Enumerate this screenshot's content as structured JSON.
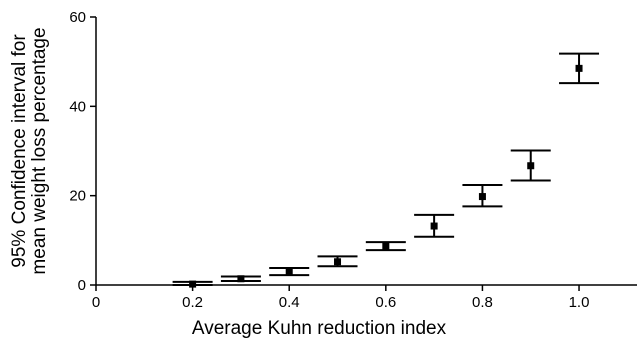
{
  "chart_data": {
    "type": "scatter",
    "title": "",
    "xlabel": "Average Kuhn reduction index",
    "ylabel_lines": [
      "95% Confidence interval for",
      "mean weight loss percentage"
    ],
    "xlim": [
      0,
      1.12
    ],
    "ylim": [
      0,
      60
    ],
    "xticks": [
      0,
      0.2,
      0.4,
      0.6,
      0.8,
      1.0
    ],
    "xtick_labels": [
      "0",
      "0.2",
      "0.4",
      "0.6",
      "0.8",
      "1.0"
    ],
    "yticks": [
      0,
      20,
      40,
      60
    ],
    "ytick_labels": [
      "0",
      "20",
      "40",
      "60"
    ],
    "grid": false,
    "series": [
      {
        "marker": "square",
        "points": [
          {
            "x": 0.2,
            "y": 0.2,
            "lower": -0.3,
            "upper": 0.7
          },
          {
            "x": 0.3,
            "y": 1.4,
            "lower": 0.9,
            "upper": 1.9
          },
          {
            "x": 0.4,
            "y": 3.0,
            "lower": 2.2,
            "upper": 3.8
          },
          {
            "x": 0.5,
            "y": 5.2,
            "lower": 4.2,
            "upper": 6.4
          },
          {
            "x": 0.6,
            "y": 8.7,
            "lower": 7.8,
            "upper": 9.6
          },
          {
            "x": 0.7,
            "y": 13.2,
            "lower": 10.8,
            "upper": 15.7
          },
          {
            "x": 0.8,
            "y": 19.8,
            "lower": 17.6,
            "upper": 22.4
          },
          {
            "x": 0.9,
            "y": 26.7,
            "lower": 23.4,
            "upper": 30.1
          },
          {
            "x": 1.0,
            "y": 48.5,
            "lower": 45.2,
            "upper": 51.8
          }
        ]
      }
    ]
  }
}
